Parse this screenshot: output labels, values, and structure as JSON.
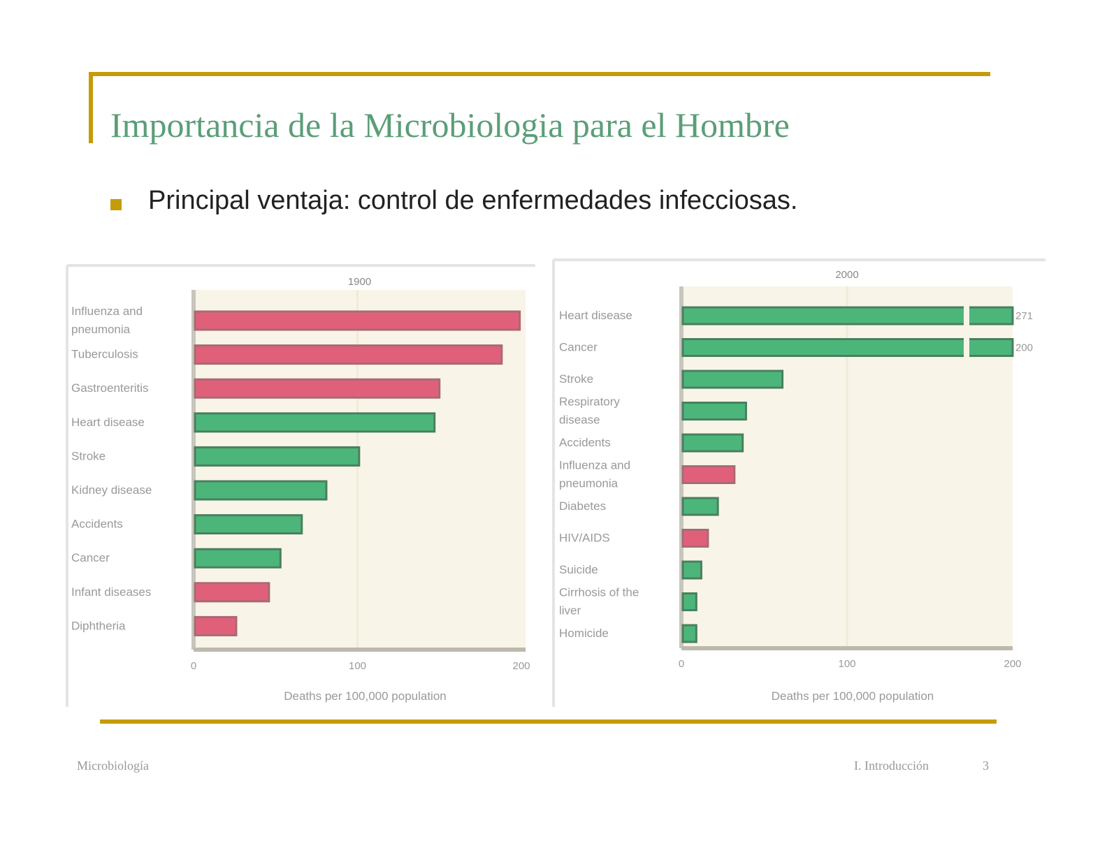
{
  "slide": {
    "title": "Importancia de la Microbiologia para el Hombre",
    "bullet": "Principal ventaja: control de enfermedades infecciosas.",
    "footer_left": "Microbiología",
    "footer_right": "I. Introducción",
    "page_number": "3"
  },
  "colors": {
    "accent": "#c59b0a",
    "infectious": "#e0607a",
    "non_infectious": "#4cb67a",
    "plot_bg": "#f9f4e8",
    "title": "#5a9e78"
  },
  "chart_data": [
    {
      "type": "bar",
      "orientation": "horizontal",
      "title": "1900",
      "xlabel": "Deaths per 100,000 population",
      "ylabel": "",
      "xlim": [
        0,
        200
      ],
      "xticks": [
        "0",
        "100",
        "200"
      ],
      "categories": [
        "Influenza and pneumonia",
        "Tuberculosis",
        "Gastroenteritis",
        "Heart disease",
        "Stroke",
        "Kidney disease",
        "Accidents",
        "Cancer",
        "Infant diseases",
        "Diphtheria"
      ],
      "values": [
        199,
        188,
        150,
        147,
        101,
        81,
        66,
        53,
        46,
        26
      ],
      "infectious": [
        true,
        true,
        true,
        false,
        false,
        false,
        false,
        false,
        true,
        true
      ],
      "value_labels": []
    },
    {
      "type": "bar",
      "orientation": "horizontal",
      "title": "2000",
      "xlabel": "Deaths per 100,000 population",
      "ylabel": "",
      "xlim": [
        0,
        200
      ],
      "xticks": [
        "0",
        "100",
        "200"
      ],
      "categories": [
        "Heart disease",
        "Cancer",
        "Stroke",
        "Respiratory disease",
        "Accidents",
        "Influenza and pneumonia",
        "Diabetes",
        "HIV/AIDS",
        "Suicide",
        "Cirrhosis of the liver",
        "Homicide"
      ],
      "values": [
        271,
        200,
        61,
        39,
        37,
        32,
        22,
        16,
        12,
        9,
        9
      ],
      "infectious": [
        false,
        false,
        false,
        false,
        false,
        true,
        false,
        true,
        false,
        false,
        false
      ],
      "broken": [
        true,
        true,
        false,
        false,
        false,
        false,
        false,
        false,
        false,
        false,
        false
      ],
      "value_labels": [
        "271",
        "200",
        "",
        "",
        "",
        "",
        "",
        "",
        "",
        "",
        ""
      ]
    }
  ]
}
